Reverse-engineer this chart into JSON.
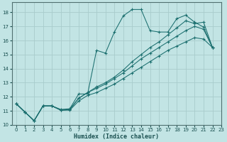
{
  "xlabel": "Humidex (Indice chaleur)",
  "bg_color": "#c2e4e4",
  "grid_color": "#a8cccc",
  "line_color": "#1a6e6e",
  "xlim": [
    -0.5,
    23
  ],
  "ylim": [
    10.0,
    18.7
  ],
  "xticks": [
    0,
    1,
    2,
    3,
    4,
    5,
    6,
    7,
    8,
    9,
    10,
    11,
    12,
    13,
    14,
    15,
    16,
    17,
    18,
    19,
    20,
    21,
    22,
    23
  ],
  "yticks": [
    10,
    11,
    12,
    13,
    14,
    15,
    16,
    17,
    18
  ],
  "lines": [
    [
      [
        0,
        11.5
      ],
      [
        1,
        10.9
      ],
      [
        2,
        10.3
      ],
      [
        3,
        11.35
      ],
      [
        4,
        11.35
      ],
      [
        5,
        11.1
      ],
      [
        6,
        11.15
      ],
      [
        7,
        12.2
      ],
      [
        8,
        12.2
      ],
      [
        9,
        15.3
      ],
      [
        10,
        15.1
      ],
      [
        11,
        16.6
      ],
      [
        12,
        17.75
      ],
      [
        13,
        18.2
      ],
      [
        14,
        18.2
      ],
      [
        15,
        16.7
      ],
      [
        16,
        16.6
      ],
      [
        17,
        16.6
      ],
      [
        18,
        17.55
      ],
      [
        19,
        17.8
      ],
      [
        20,
        17.3
      ],
      [
        21,
        16.95
      ],
      [
        22,
        15.5
      ]
    ],
    [
      [
        0,
        11.5
      ],
      [
        1,
        10.9
      ],
      [
        2,
        10.3
      ],
      [
        3,
        11.35
      ],
      [
        4,
        11.35
      ],
      [
        5,
        11.05
      ],
      [
        6,
        11.1
      ],
      [
        7,
        11.9
      ],
      [
        8,
        12.3
      ],
      [
        9,
        12.7
      ],
      [
        10,
        13.0
      ],
      [
        11,
        13.4
      ],
      [
        12,
        13.9
      ],
      [
        13,
        14.5
      ],
      [
        14,
        15.0
      ],
      [
        15,
        15.5
      ],
      [
        16,
        15.9
      ],
      [
        17,
        16.4
      ],
      [
        18,
        16.9
      ],
      [
        19,
        17.4
      ],
      [
        20,
        17.2
      ],
      [
        21,
        17.3
      ],
      [
        22,
        15.5
      ]
    ],
    [
      [
        0,
        11.5
      ],
      [
        1,
        10.9
      ],
      [
        2,
        10.3
      ],
      [
        3,
        11.35
      ],
      [
        4,
        11.35
      ],
      [
        5,
        11.05
      ],
      [
        6,
        11.1
      ],
      [
        7,
        11.9
      ],
      [
        8,
        12.3
      ],
      [
        9,
        12.6
      ],
      [
        10,
        12.9
      ],
      [
        11,
        13.3
      ],
      [
        12,
        13.7
      ],
      [
        13,
        14.2
      ],
      [
        14,
        14.7
      ],
      [
        15,
        15.1
      ],
      [
        16,
        15.5
      ],
      [
        17,
        15.9
      ],
      [
        18,
        16.3
      ],
      [
        19,
        16.7
      ],
      [
        20,
        17.0
      ],
      [
        21,
        16.8
      ],
      [
        22,
        15.5
      ]
    ],
    [
      [
        0,
        11.5
      ],
      [
        1,
        10.9
      ],
      [
        2,
        10.3
      ],
      [
        3,
        11.35
      ],
      [
        4,
        11.35
      ],
      [
        5,
        11.05
      ],
      [
        6,
        11.05
      ],
      [
        7,
        11.7
      ],
      [
        8,
        12.1
      ],
      [
        9,
        12.3
      ],
      [
        10,
        12.6
      ],
      [
        11,
        12.9
      ],
      [
        12,
        13.3
      ],
      [
        13,
        13.7
      ],
      [
        14,
        14.1
      ],
      [
        15,
        14.5
      ],
      [
        16,
        14.9
      ],
      [
        17,
        15.3
      ],
      [
        18,
        15.6
      ],
      [
        19,
        15.9
      ],
      [
        20,
        16.2
      ],
      [
        21,
        16.1
      ],
      [
        22,
        15.5
      ]
    ]
  ]
}
